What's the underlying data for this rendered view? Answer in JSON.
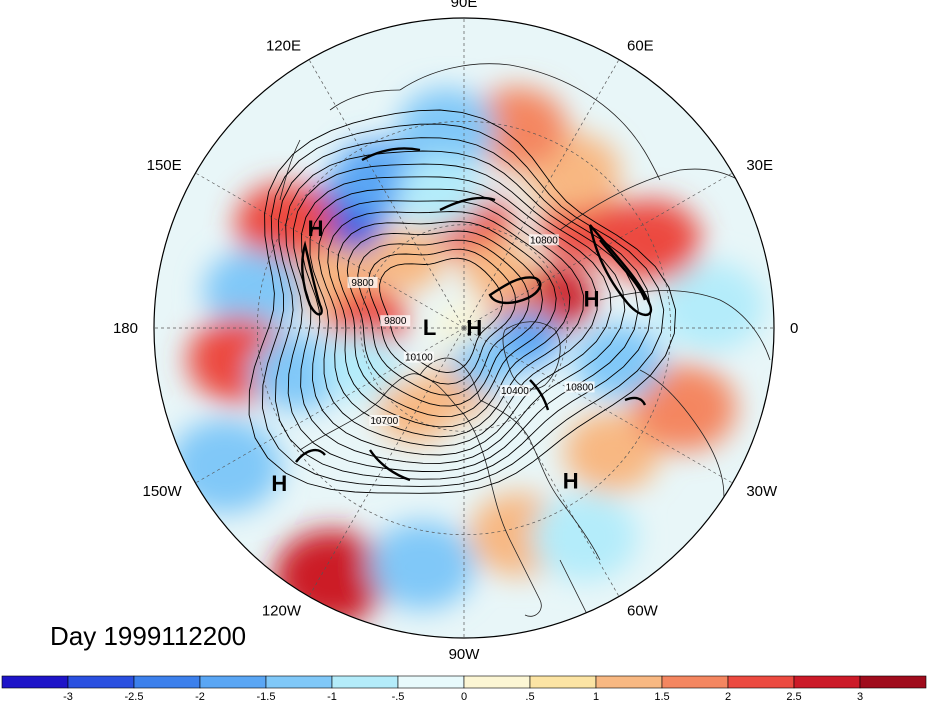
{
  "title": "Day 1999112200",
  "longitude_labels": [
    {
      "text": "90E",
      "lon": 90
    },
    {
      "text": "60E",
      "lon": 60
    },
    {
      "text": "30E",
      "lon": 30
    },
    {
      "text": "0",
      "lon": 0
    },
    {
      "text": "30W",
      "lon": -30
    },
    {
      "text": "60W",
      "lon": -60
    },
    {
      "text": "90W",
      "lon": -90
    },
    {
      "text": "120W",
      "lon": -120
    },
    {
      "text": "150W",
      "lon": -150
    },
    {
      "text": "180",
      "lon": 180
    },
    {
      "text": "150E",
      "lon": 150
    },
    {
      "text": "120E",
      "lon": 120
    }
  ],
  "pressure_centers": [
    {
      "text": "H",
      "lon": 146,
      "lat": 38
    },
    {
      "text": "L",
      "lon": 178,
      "lat": 80
    },
    {
      "text": "H",
      "lon": 2,
      "lat": 87
    },
    {
      "text": "H",
      "lon": 13,
      "lat": 52
    },
    {
      "text": "H",
      "lon": -140,
      "lat": 20
    },
    {
      "text": "H",
      "lon": -55,
      "lat": 36
    }
  ],
  "contour_labels": [
    {
      "text": "10800",
      "lon": 47,
      "lat": 56
    },
    {
      "text": "10800",
      "lon": -28,
      "lat": 52
    },
    {
      "text": "10400",
      "lon": -52,
      "lat": 66
    },
    {
      "text": "10100",
      "lon": -145,
      "lat": 74
    },
    {
      "text": "10700",
      "lon": -130,
      "lat": 54
    },
    {
      "text": "9800",
      "lon": 176,
      "lat": 70
    },
    {
      "text": "9800",
      "lon": 157,
      "lat": 58
    }
  ],
  "colorbar": {
    "labels": [
      "-3",
      "-2.5",
      "-2",
      "-1.5",
      "-1",
      "-.5",
      "0",
      ".5",
      "1",
      "1.5",
      "2",
      "2.5",
      "3"
    ],
    "colors": [
      "#1e14c8",
      "#2a50e0",
      "#3c80ec",
      "#5aa6f4",
      "#80c8f8",
      "#b4ecfa",
      "#e8fafc",
      "#fcf6d4",
      "#fce4a4",
      "#f8b882",
      "#f48660",
      "#ec4a40",
      "#cc1a28",
      "#a00c1c"
    ]
  },
  "anomaly_cells": [
    {
      "lon": 140,
      "lat": 42,
      "value": -2.6
    },
    {
      "lon": 150,
      "lat": 30,
      "value": 2.2
    },
    {
      "lon": 120,
      "lat": 40,
      "value": -1.6
    },
    {
      "lon": 160,
      "lat": 50,
      "value": 1.2
    },
    {
      "lon": 170,
      "lat": 28,
      "value": -1.4
    },
    {
      "lon": -172,
      "lat": 24,
      "value": 2.3
    },
    {
      "lon": -165,
      "lat": 40,
      "value": -1.2
    },
    {
      "lon": -150,
      "lat": 10,
      "value": -1.5
    },
    {
      "lon": -118,
      "lat": 8,
      "value": 2.8
    },
    {
      "lon": -100,
      "lat": 20,
      "value": -1.3
    },
    {
      "lon": -75,
      "lat": 28,
      "value": 1.4
    },
    {
      "lon": -60,
      "lat": 20,
      "value": -0.9
    },
    {
      "lon": -40,
      "lat": 34,
      "value": 1.0
    },
    {
      "lon": -20,
      "lat": 22,
      "value": 1.9
    },
    {
      "lon": -12,
      "lat": 44,
      "value": -1.4
    },
    {
      "lon": 5,
      "lat": 18,
      "value": -1.0
    },
    {
      "lon": 25,
      "lat": 30,
      "value": 2.0
    },
    {
      "lon": 40,
      "lat": 44,
      "value": 2.1
    },
    {
      "lon": 55,
      "lat": 35,
      "value": 1.4
    },
    {
      "lon": 75,
      "lat": 30,
      "value": 1.6
    },
    {
      "lon": 95,
      "lat": 32,
      "value": -1.4
    },
    {
      "lon": 85,
      "lat": 60,
      "value": 2.2
    },
    {
      "lon": 100,
      "lat": 50,
      "value": -0.8
    },
    {
      "lon": 18,
      "lat": 62,
      "value": 2.6
    },
    {
      "lon": 8,
      "lat": 74,
      "value": 1.8
    },
    {
      "lon": -10,
      "lat": 72,
      "value": -1.6
    },
    {
      "lon": 175,
      "lat": 62,
      "value": 2.3
    },
    {
      "lon": 178,
      "lat": 90,
      "value": 0.4
    },
    {
      "lon": -120,
      "lat": 62,
      "value": 1.1
    },
    {
      "lon": -95,
      "lat": 72,
      "value": 1.4
    },
    {
      "lon": -60,
      "lat": 78,
      "value": -1.2
    },
    {
      "lon": 60,
      "lat": 70,
      "value": 1.0
    },
    {
      "lon": -160,
      "lat": 58,
      "value": -0.9
    },
    {
      "lon": 130,
      "lat": 64,
      "value": 1.2
    }
  ]
}
